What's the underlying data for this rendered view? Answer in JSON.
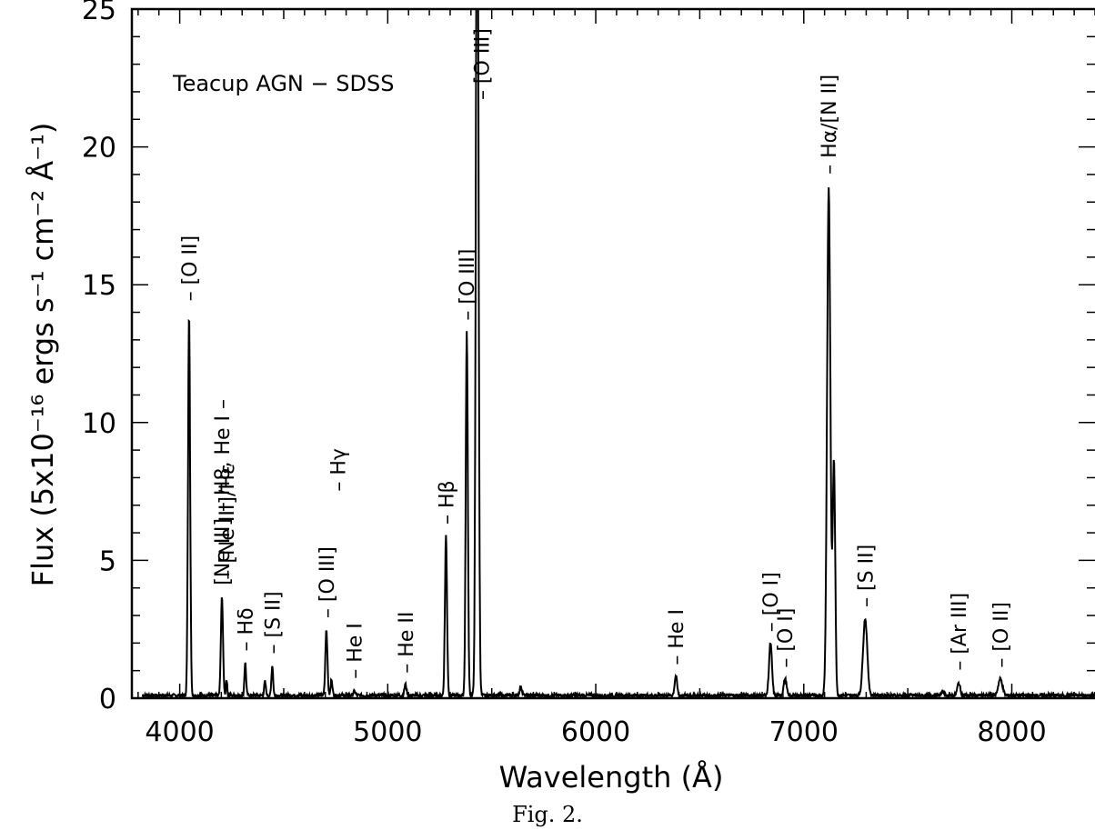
{
  "caption": "Fig. 2.",
  "chart_data": {
    "type": "line",
    "title": "Teacup AGN − SDSS",
    "xlabel": "Wavelength (Å)",
    "ylabel": "Flux (5x10⁻¹⁶ ergs s⁻¹ cm⁻² Å⁻¹)",
    "xlim": [
      3770,
      8400
    ],
    "ylim": [
      0,
      25
    ],
    "xticks": [
      4000,
      5000,
      6000,
      7000,
      8000
    ],
    "yticks": [
      0,
      5,
      10,
      15,
      20,
      25
    ],
    "grid": false,
    "series": [
      {
        "continuum": 0.1,
        "xrange": [
          3820,
          8400
        ],
        "lines": [
          {
            "x": 4045,
            "peak": 13.9,
            "width": 5
          },
          {
            "x": 4203,
            "peak": 3.6,
            "width": 5
          },
          {
            "x": 4225,
            "peak": 0.6,
            "width": 3
          },
          {
            "x": 4315,
            "peak": 1.2,
            "width": 4
          },
          {
            "x": 4410,
            "peak": 0.5,
            "width": 4
          },
          {
            "x": 4445,
            "peak": 1.1,
            "width": 4
          },
          {
            "x": 4705,
            "peak": 2.4,
            "width": 5
          },
          {
            "x": 4730,
            "peak": 0.6,
            "width": 4
          },
          {
            "x": 4840,
            "peak": 0.15,
            "width": 5
          },
          {
            "x": 5085,
            "peak": 0.4,
            "width": 5
          },
          {
            "x": 5280,
            "peak": 5.8,
            "width": 5
          },
          {
            "x": 5380,
            "peak": 13.2,
            "width": 5
          },
          {
            "x": 5430,
            "peak": 35,
            "width": 6
          },
          {
            "x": 5640,
            "peak": 0.3,
            "width": 6
          },
          {
            "x": 6385,
            "peak": 0.7,
            "width": 6
          },
          {
            "x": 6840,
            "peak": 1.9,
            "width": 7
          },
          {
            "x": 6910,
            "peak": 0.6,
            "width": 7
          },
          {
            "x": 7120,
            "peak": 18.4,
            "width": 8
          },
          {
            "x": 7145,
            "peak": 8.5,
            "width": 6
          },
          {
            "x": 7295,
            "peak": 2.8,
            "width": 10
          },
          {
            "x": 7670,
            "peak": 0.15,
            "width": 6
          },
          {
            "x": 7745,
            "peak": 0.45,
            "width": 7
          },
          {
            "x": 7945,
            "peak": 0.6,
            "width": 10
          }
        ]
      }
    ],
    "annotations": [
      {
        "text": "– [O II]",
        "x": 4045,
        "y": 14.4
      },
      {
        "text": "[Ne III] – H8, He I –",
        "x": 4203,
        "y": 4.1
      },
      {
        "text": "– [Ne III]/Hε",
        "x": 4225,
        "y": 4.3
      },
      {
        "text": "– Hδ",
        "x": 4315,
        "y": 1.7
      },
      {
        "text": "– [S II]",
        "x": 4445,
        "y": 1.6
      },
      {
        "text": "– [O III]",
        "x": 4705,
        "y": 2.9
      },
      {
        "text": "– Hγ",
        "x": 4760,
        "y": 7.5
      },
      {
        "text": "– He I",
        "x": 4840,
        "y": 0.7
      },
      {
        "text": "– He II",
        "x": 5085,
        "y": 0.9
      },
      {
        "text": "– Hβ",
        "x": 5280,
        "y": 6.3
      },
      {
        "text": "– [O III]",
        "x": 5380,
        "y": 13.7
      },
      {
        "text": "– [O III]",
        "x": 5450,
        "y": 21.7
      },
      {
        "text": "– He I",
        "x": 6385,
        "y": 1.2
      },
      {
        "text": "– [O I]",
        "x": 6840,
        "y": 2.4
      },
      {
        "text": "– [O I]",
        "x": 6910,
        "y": 1.1
      },
      {
        "text": "– Hα/[N II]",
        "x": 7120,
        "y": 19.0
      },
      {
        "text": "– [S II]",
        "x": 7295,
        "y": 3.3
      },
      {
        "text": "– [Ar III]",
        "x": 7745,
        "y": 1.0
      },
      {
        "text": "– [O II]",
        "x": 7945,
        "y": 1.1
      }
    ]
  }
}
